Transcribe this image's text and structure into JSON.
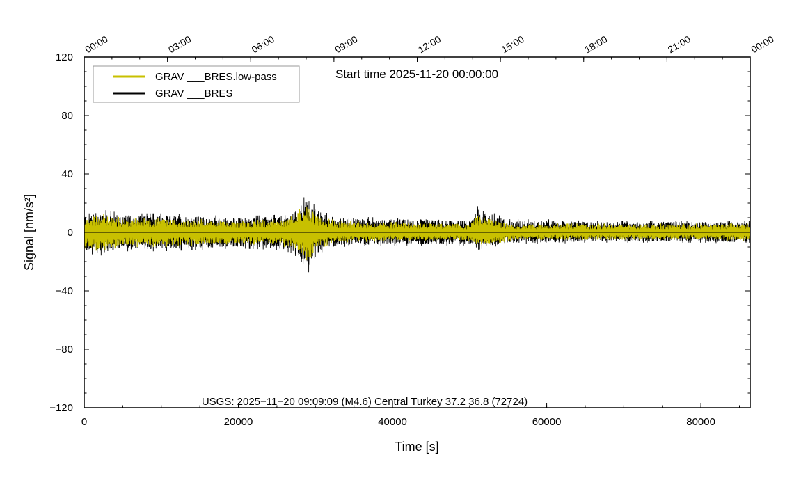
{
  "chart_data": {
    "type": "line",
    "title": "Start time 2025-11-20 00:00:00",
    "xlabel": "Time [s]",
    "ylabel": "Signal [nm/s²]",
    "xlim": [
      0,
      86400
    ],
    "ylim": [
      -120,
      120
    ],
    "x_ticks": [
      0,
      20000,
      40000,
      60000,
      80000
    ],
    "x_tick_labels": [
      "0",
      "20000",
      "40000",
      "60000",
      "80000"
    ],
    "y_ticks": [
      -120,
      -80,
      -40,
      0,
      40,
      80,
      120
    ],
    "y_tick_labels": [
      "−120",
      "−80",
      "−40",
      "0",
      "40",
      "80",
      "120"
    ],
    "top_axis_ticks": [
      0,
      10800,
      21600,
      32400,
      43200,
      54000,
      64800,
      75600,
      86400
    ],
    "top_axis_labels": [
      "00:00",
      "03:00",
      "06:00",
      "09:00",
      "12:00",
      "15:00",
      "18:00",
      "21:00",
      "00:00"
    ],
    "grid": false,
    "legend_position": "top-left",
    "annotation": "USGS: 2025−11−20 09:09:09 (M4.6) Central Turkey 37.2 36.8 (72724)",
    "series": [
      {
        "name": "GRAV ___BRES",
        "color": "#000000",
        "envelope_x": [
          0,
          2000,
          5000,
          10000,
          15000,
          20000,
          25000,
          27000,
          28500,
          29000,
          29500,
          30000,
          31000,
          33000,
          40000,
          45000,
          50000,
          51000,
          55000,
          60000,
          65000,
          70000,
          75000,
          80000,
          86400
        ],
        "envelope_upper": [
          14,
          16,
          13,
          13,
          12,
          11,
          12,
          14,
          24,
          26,
          22,
          18,
          14,
          11,
          10,
          10,
          9,
          18,
          9,
          9,
          8,
          8,
          8,
          8,
          8
        ],
        "envelope_lower": [
          -14,
          -16,
          -13,
          -13,
          -12,
          -11,
          -12,
          -14,
          -22,
          -29,
          -22,
          -17,
          -13,
          -10,
          -9,
          -9,
          -9,
          -12,
          -8,
          -8,
          -7,
          -7,
          -7,
          -7,
          -8
        ]
      },
      {
        "name": "GRAV ___BRES.low-pass",
        "color": "#c8c000",
        "envelope_x": [
          0,
          2000,
          5000,
          10000,
          15000,
          20000,
          25000,
          27000,
          28500,
          29000,
          29500,
          30000,
          31000,
          33000,
          40000,
          45000,
          50000,
          51000,
          55000,
          60000,
          65000,
          70000,
          75000,
          80000,
          86400
        ],
        "envelope_upper": [
          11,
          13,
          10,
          10,
          9,
          8,
          9,
          11,
          19,
          21,
          17,
          13,
          10,
          8,
          7,
          7,
          6,
          13,
          6,
          6,
          6,
          6,
          6,
          6,
          6
        ],
        "envelope_lower": [
          -11,
          -13,
          -10,
          -10,
          -9,
          -8,
          -9,
          -11,
          -18,
          -25,
          -18,
          -13,
          -10,
          -7,
          -6,
          -6,
          -6,
          -10,
          -6,
          -5,
          -5,
          -5,
          -5,
          -5,
          -6
        ]
      }
    ]
  }
}
